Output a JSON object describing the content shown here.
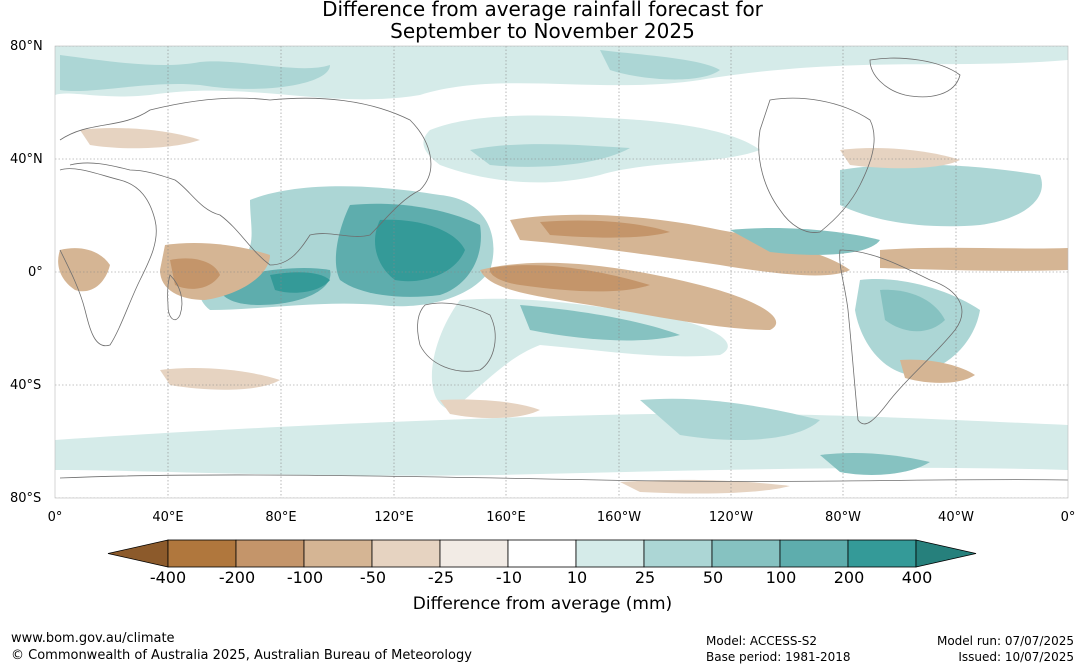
{
  "title": {
    "line1": "Difference from average rainfall forecast for",
    "line2": "September to November 2025"
  },
  "map": {
    "lat_labels": [
      "80°N",
      "40°N",
      "0°",
      "40°S",
      "80°S"
    ],
    "lon_labels": [
      "0°",
      "40°E",
      "80°E",
      "120°E",
      "160°E",
      "160°W",
      "120°W",
      "80°W",
      "40°W",
      "0°"
    ]
  },
  "legend": {
    "title": "Difference from average (mm)",
    "ticks": [
      "-400",
      "-200",
      "-100",
      "-50",
      "-25",
      "-10",
      "10",
      "25",
      "50",
      "100",
      "200",
      "400"
    ],
    "colors": [
      "#8c5a2b",
      "#b0773d",
      "#c4956a",
      "#d5b594",
      "#e6d3c1",
      "#f2ebe5",
      "#ffffff",
      "#d5ebe9",
      "#acd6d5",
      "#86c2c1",
      "#5eadad",
      "#349a98",
      "#26807c"
    ]
  },
  "footer": {
    "url": "www.bom.gov.au/climate",
    "copyright": "© Commonwealth of Australia 2025, Australian Bureau of Meteorology",
    "model": "Model: ACCESS-S2",
    "base_period": "Base period: 1981-2018",
    "model_run": "Model run: 07/07/2025",
    "issued": "Issued: 10/07/2025"
  }
}
